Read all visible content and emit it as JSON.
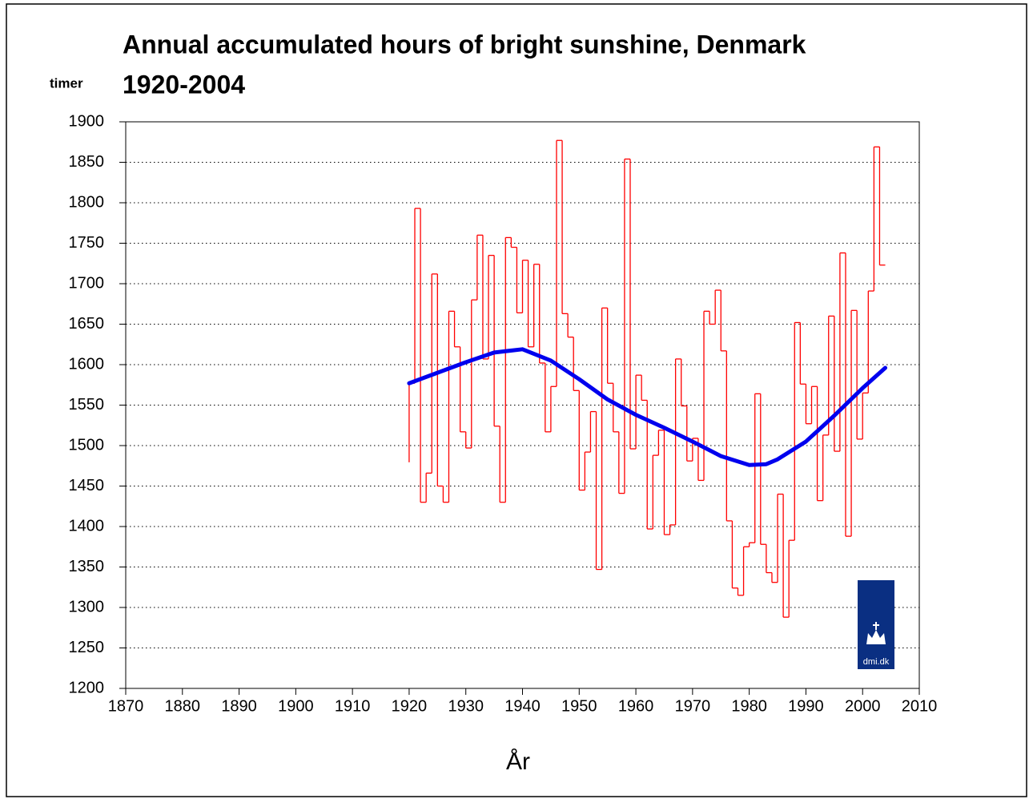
{
  "chart_data": {
    "type": "step",
    "title": "Annual accumulated hours of bright sunshine, Denmark",
    "subtitle": "1920-2004",
    "ylabel": "timer",
    "xlabel": "År",
    "logo_text": "dmi.dk",
    "xlim": [
      1870,
      2010
    ],
    "xticks": [
      1870,
      1880,
      1890,
      1900,
      1910,
      1920,
      1930,
      1940,
      1950,
      1960,
      1970,
      1980,
      1990,
      2000,
      2010
    ],
    "ylim": [
      1200,
      1900
    ],
    "yticks": [
      1200,
      1250,
      1300,
      1350,
      1400,
      1450,
      1500,
      1550,
      1600,
      1650,
      1700,
      1750,
      1800,
      1850,
      1900
    ],
    "grid": true,
    "color": "#ff0000",
    "x": [
      1920,
      1921,
      1922,
      1923,
      1924,
      1925,
      1926,
      1927,
      1928,
      1929,
      1930,
      1931,
      1932,
      1933,
      1934,
      1935,
      1936,
      1937,
      1938,
      1939,
      1940,
      1941,
      1942,
      1943,
      1944,
      1945,
      1946,
      1947,
      1948,
      1949,
      1950,
      1951,
      1952,
      1953,
      1954,
      1955,
      1956,
      1957,
      1958,
      1959,
      1960,
      1961,
      1962,
      1963,
      1964,
      1965,
      1966,
      1967,
      1968,
      1969,
      1970,
      1971,
      1972,
      1973,
      1974,
      1975,
      1976,
      1977,
      1978,
      1979,
      1980,
      1981,
      1982,
      1983,
      1984,
      1985,
      1986,
      1987,
      1988,
      1989,
      1990,
      1991,
      1992,
      1993,
      1994,
      1995,
      1996,
      1997,
      1998,
      1999,
      2000,
      2001,
      2002,
      2003,
      2004
    ],
    "values": [
      1480,
      1577,
      1793,
      1430,
      1466,
      1712,
      1450,
      1430,
      1666,
      1622,
      1517,
      1497,
      1680,
      1760,
      1607,
      1735,
      1524,
      1430,
      1757,
      1745,
      1664,
      1729,
      1622,
      1724,
      1602,
      1517,
      1573,
      1877,
      1663,
      1634,
      1568,
      1445,
      1492,
      1542,
      1347,
      1670,
      1577,
      1517,
      1441,
      1854,
      1496,
      1587,
      1556,
      1397,
      1488,
      1519,
      1390,
      1402,
      1607,
      1549,
      1481,
      1509,
      1457,
      1666,
      1650,
      1692,
      1617,
      1407,
      1324,
      1315,
      1375,
      1380,
      1564,
      1378,
      1343,
      1331,
      1440,
      1288,
      1383,
      1652,
      1576,
      1527,
      1573,
      1432,
      1513,
      1660,
      1493,
      1738,
      1388,
      1667,
      1508,
      1565,
      1691,
      1869,
      1723
    ],
    "trend_color": "#0000ee",
    "trend_x": [
      1920,
      1925,
      1930,
      1935,
      1940,
      1945,
      1950,
      1955,
      1960,
      1965,
      1970,
      1975,
      1980,
      1983,
      1985,
      1990,
      1995,
      2000,
      2004
    ],
    "trend_values": [
      1577,
      1590,
      1603,
      1615,
      1619,
      1605,
      1582,
      1557,
      1538,
      1522,
      1505,
      1487,
      1476,
      1477,
      1483,
      1505,
      1537,
      1571,
      1596
    ]
  }
}
